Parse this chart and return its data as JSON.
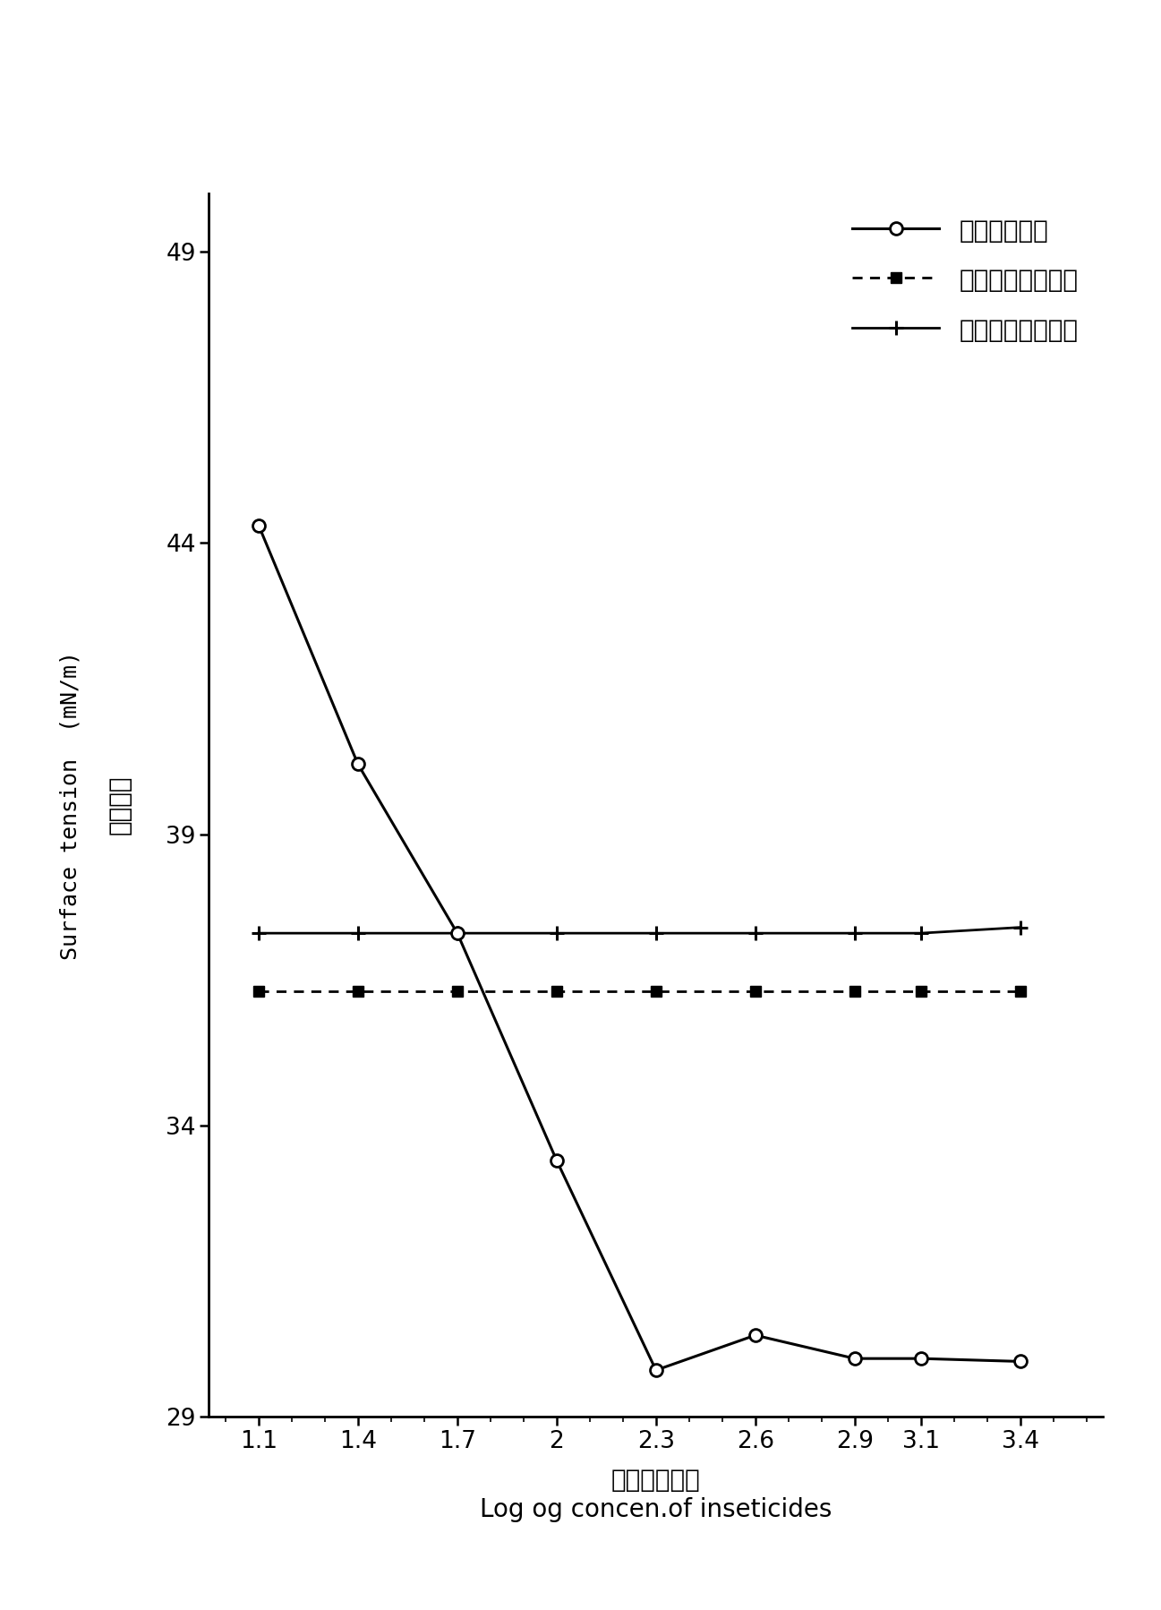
{
  "x_values": [
    1.1,
    1.4,
    1.7,
    2.0,
    2.3,
    2.6,
    2.9,
    3.1,
    3.4
  ],
  "series1_name": "杀虫单微乳剂",
  "series1_y": [
    44.3,
    40.2,
    37.3,
    33.4,
    29.8,
    30.4,
    30.0,
    30.0,
    29.95
  ],
  "series2_name": "甘蓝临界表面张力",
  "series2_y": [
    36.3,
    36.3,
    36.3,
    36.3,
    36.3,
    36.3,
    36.3,
    36.3,
    36.3
  ],
  "series3_name": "水稻临界表面张力",
  "series3_y": [
    37.3,
    37.3,
    37.3,
    37.3,
    37.3,
    37.3,
    37.3,
    37.3,
    37.4
  ],
  "x_ticks": [
    1.1,
    1.4,
    1.7,
    2.0,
    2.3,
    2.6,
    2.9,
    3.1,
    3.4
  ],
  "x_tick_labels": [
    "1.1",
    "1.4",
    "1.7",
    "2",
    "2.3",
    "2.6",
    "2.9",
    "3.1",
    "3.4"
  ],
  "y_ticks": [
    29,
    34,
    39,
    44,
    49
  ],
  "ylim": [
    29,
    50
  ],
  "xlim": [
    0.95,
    3.65
  ],
  "xlabel_cn": "药剂浓度对数",
  "xlabel_en": "Log og concen.of inseticides",
  "ylabel_cn": "表面张力",
  "ylabel_en": "Surface tension  (mN/m)",
  "line_color": "#000000",
  "bg_color": "#ffffff",
  "legend_fontsize": 20,
  "tick_fontsize": 19,
  "label_fontsize": 20,
  "xlabel_en_fontsize": 18
}
